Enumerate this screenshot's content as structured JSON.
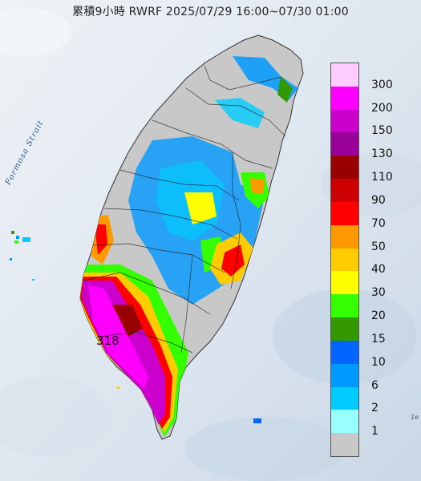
{
  "title": "累積9小時 RWRF 2025/07/29 16:00~07/30 01:00",
  "strait_label": "Formosa Strait",
  "corner_label": "1e",
  "map_value_label": "318",
  "legend": [
    {
      "label": "300",
      "color": "#ffccff"
    },
    {
      "label": "200",
      "color": "#ff00ff"
    },
    {
      "label": "150",
      "color": "#cc00cc"
    },
    {
      "label": "130",
      "color": "#990099"
    },
    {
      "label": "110",
      "color": "#990000"
    },
    {
      "label": "90",
      "color": "#cc0000"
    },
    {
      "label": "70",
      "color": "#ff0000"
    },
    {
      "label": "50",
      "color": "#ff9900"
    },
    {
      "label": "40",
      "color": "#ffcc00"
    },
    {
      "label": "30",
      "color": "#ffff00"
    },
    {
      "label": "20",
      "color": "#33ff00"
    },
    {
      "label": "15",
      "color": "#339900"
    },
    {
      "label": "10",
      "color": "#0066ff"
    },
    {
      "label": "6",
      "color": "#0099ff"
    },
    {
      "label": "2",
      "color": "#00ccff"
    },
    {
      "label": "1",
      "color": "#99ffff"
    },
    {
      "label": "",
      "color": "#c8c8c8"
    }
  ]
}
